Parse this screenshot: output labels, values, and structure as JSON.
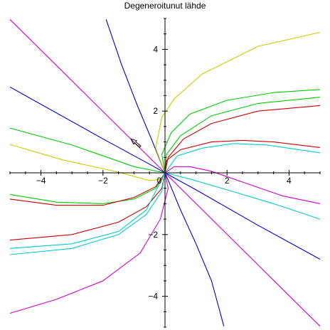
{
  "chart_data": {
    "type": "line",
    "title": "Degeneroitunut lähde",
    "xlabel": "",
    "ylabel": "",
    "xlim": [
      -5,
      5
    ],
    "ylim": [
      -5,
      5
    ],
    "grid": false,
    "x_ticks": [
      -4,
      -2,
      0,
      2,
      4
    ],
    "y_ticks": [
      -4,
      -2,
      2,
      4
    ],
    "direction_arrow": {
      "x": -0.8,
      "y": 0.85,
      "dx": -0.3,
      "dy": 0.25
    },
    "series": [
      {
        "color": "#cc00cc",
        "points": [
          [
            -5,
            4.97
          ],
          [
            5,
            -4.97
          ]
        ]
      },
      {
        "color": "#0000cc",
        "points": [
          [
            -5,
            2.78
          ],
          [
            -2,
            1.1
          ],
          [
            -0.5,
            0.28
          ],
          [
            0,
            0.0
          ],
          [
            1,
            -0.55
          ],
          [
            3,
            -1.7
          ],
          [
            5,
            -2.8
          ]
        ]
      },
      {
        "color": "#0000cc",
        "points": [
          [
            -1.9,
            4.97
          ],
          [
            -1.4,
            3.5
          ],
          [
            -0.9,
            2.2
          ],
          [
            -0.4,
            1.0
          ],
          [
            -0.1,
            0.25
          ],
          [
            0,
            0.0
          ],
          [
            0.15,
            -0.35
          ],
          [
            0.5,
            -1.2
          ],
          [
            1.0,
            -2.3
          ],
          [
            1.5,
            -3.5
          ],
          [
            1.9,
            -4.97
          ]
        ]
      },
      {
        "color": "#00cc00",
        "points": [
          [
            -5,
            1.45
          ],
          [
            -3,
            0.9
          ],
          [
            -1,
            0.2
          ],
          [
            0,
            0.0
          ]
        ]
      },
      {
        "color": "#cccc00",
        "points": [
          [
            -5,
            0.92
          ],
          [
            -3.3,
            0.42
          ],
          [
            -1.5,
            0.02
          ],
          [
            -0.5,
            -0.25
          ],
          [
            0,
            -0.2
          ],
          [
            0.02,
            0.0
          ]
        ]
      },
      {
        "color": "#cccc00",
        "points": [
          [
            0,
            0.0
          ],
          [
            -0.3,
            0.8
          ],
          [
            -0.1,
            1.8
          ],
          [
            0.3,
            2.4
          ],
          [
            1.2,
            3.2
          ],
          [
            3,
            4.1
          ],
          [
            5,
            4.55
          ]
        ]
      },
      {
        "color": "#00cc00",
        "points": [
          [
            0,
            0.0
          ],
          [
            -0.1,
            0.6
          ],
          [
            0.2,
            1.3
          ],
          [
            0.8,
            1.9
          ],
          [
            2,
            2.35
          ],
          [
            3.5,
            2.6
          ],
          [
            5,
            2.7
          ]
        ]
      },
      {
        "color": "#00cc00",
        "points": [
          [
            0,
            0.0
          ],
          [
            0.05,
            0.6
          ],
          [
            0.5,
            1.2
          ],
          [
            1.5,
            1.85
          ],
          [
            3,
            2.25
          ],
          [
            5,
            2.45
          ]
        ]
      },
      {
        "color": "#cc0000",
        "points": [
          [
            0,
            0.0
          ],
          [
            0.1,
            0.5
          ],
          [
            0.6,
            1.1
          ],
          [
            1.5,
            1.6
          ],
          [
            3,
            2.0
          ],
          [
            5,
            2.18
          ]
        ]
      },
      {
        "color": "#cc0000",
        "points": [
          [
            0,
            0.0
          ],
          [
            0.05,
            0.4
          ],
          [
            0.5,
            0.75
          ],
          [
            1.5,
            1.0
          ],
          [
            2.5,
            1.05
          ],
          [
            3.5,
            1.0
          ],
          [
            5,
            0.82
          ]
        ]
      },
      {
        "color": "#00cccc",
        "points": [
          [
            0,
            0.0
          ],
          [
            0.4,
            0.55
          ],
          [
            1.2,
            0.8
          ],
          [
            2.2,
            0.95
          ],
          [
            3.3,
            0.9
          ],
          [
            5,
            0.65
          ]
        ]
      },
      {
        "color": "#cc00cc",
        "points": [
          [
            0,
            0.0
          ],
          [
            0.3,
            0.2
          ],
          [
            0.8,
            0.2
          ],
          [
            1.5,
            0.05
          ],
          [
            2.5,
            -0.3
          ],
          [
            3.8,
            -0.75
          ],
          [
            5,
            -1.0
          ]
        ]
      },
      {
        "color": "#00cccc",
        "points": [
          [
            0,
            0.0
          ],
          [
            0.8,
            -0.2
          ],
          [
            2,
            -0.55
          ],
          [
            3.5,
            -1.0
          ],
          [
            5,
            -1.5
          ]
        ]
      },
      {
        "color": "#00cc00",
        "points": [
          [
            -5,
            -0.7
          ],
          [
            -3.5,
            -0.95
          ],
          [
            -2,
            -1.0
          ],
          [
            -1,
            -0.85
          ],
          [
            -0.3,
            -0.5
          ],
          [
            0,
            0.0
          ]
        ]
      },
      {
        "color": "#cc0000",
        "points": [
          [
            -5,
            -0.85
          ],
          [
            -3.5,
            -1.05
          ],
          [
            -2,
            -1.05
          ],
          [
            -1,
            -0.8
          ],
          [
            -0.3,
            -0.45
          ],
          [
            0,
            0.0
          ]
        ]
      },
      {
        "color": "#cc0000",
        "points": [
          [
            -5,
            -2.18
          ],
          [
            -3,
            -2.0
          ],
          [
            -1.5,
            -1.6
          ],
          [
            -0.6,
            -1.1
          ],
          [
            -0.1,
            -0.5
          ],
          [
            0,
            0.0
          ]
        ]
      },
      {
        "color": "#00cccc",
        "points": [
          [
            -5,
            -2.45
          ],
          [
            -3,
            -2.3
          ],
          [
            -1.5,
            -1.9
          ],
          [
            -0.6,
            -1.2
          ],
          [
            0,
            0.0
          ]
        ]
      },
      {
        "color": "#00cccc",
        "points": [
          [
            -5,
            -2.65
          ],
          [
            -3,
            -2.45
          ],
          [
            -1.5,
            -2.0
          ],
          [
            -0.6,
            -1.35
          ],
          [
            -0.1,
            -0.6
          ],
          [
            0,
            0.0
          ]
        ]
      },
      {
        "color": "#cc00cc",
        "points": [
          [
            -5,
            -4.55
          ],
          [
            -3.5,
            -4.1
          ],
          [
            -2,
            -3.5
          ],
          [
            -0.8,
            -2.6
          ],
          [
            -0.15,
            -1.5
          ],
          [
            0.1,
            -0.5
          ],
          [
            0,
            0.0
          ]
        ]
      }
    ]
  }
}
